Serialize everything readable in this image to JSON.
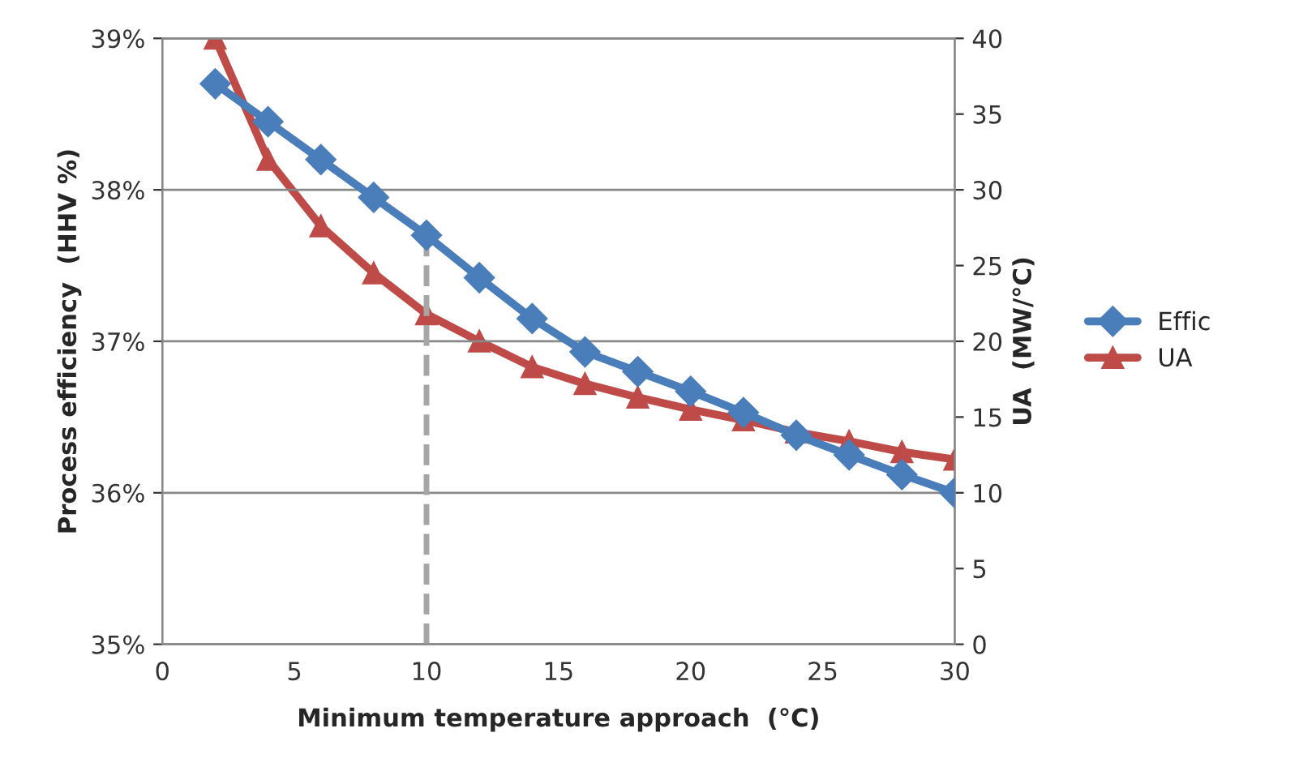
{
  "chart_data": {
    "type": "line",
    "xlabel": "Minimum temperature approach  (°C)",
    "ylabel": "Process efficiency  (HHV %)",
    "y2label": "UA  (MW/°C)",
    "x": [
      2,
      4,
      6,
      8,
      10,
      12,
      14,
      16,
      18,
      20,
      22,
      24,
      26,
      28,
      30
    ],
    "series": [
      {
        "name": "Effic",
        "color": "#4a7ebb",
        "marker": "diamond",
        "values": [
          38.7,
          38.45,
          38.2,
          37.95,
          37.7,
          37.42,
          37.15,
          36.93,
          36.8,
          36.67,
          36.53,
          36.38,
          36.25,
          36.12,
          36.0
        ]
      },
      {
        "name": "UA",
        "color": "#be4b48",
        "marker": "triangle",
        "axis": "y2",
        "values": [
          40,
          32,
          27.6,
          24.5,
          21.8,
          20,
          18.3,
          17.2,
          16.3,
          15.5,
          14.8,
          14,
          13.4,
          12.7,
          12.2
        ]
      }
    ],
    "xlim": [
      0,
      30
    ],
    "xticks": [
      0,
      5,
      10,
      15,
      20,
      25,
      30
    ],
    "ylim": [
      35,
      39
    ],
    "yticks": [
      {
        "value": 35,
        "label": "35%"
      },
      {
        "value": 36,
        "label": "36%"
      },
      {
        "value": 37,
        "label": "37%"
      },
      {
        "value": 38,
        "label": "38%"
      },
      {
        "value": 39,
        "label": "39%"
      }
    ],
    "y2lim": [
      0,
      40
    ],
    "y2ticks": [
      0,
      5,
      10,
      15,
      20,
      25,
      30,
      35,
      40
    ],
    "ref_lines": [
      {
        "axis": "x",
        "value": 10,
        "color": "#a6a6a6",
        "line_style": "dashed"
      }
    ],
    "grid": "y",
    "legend": "right"
  }
}
